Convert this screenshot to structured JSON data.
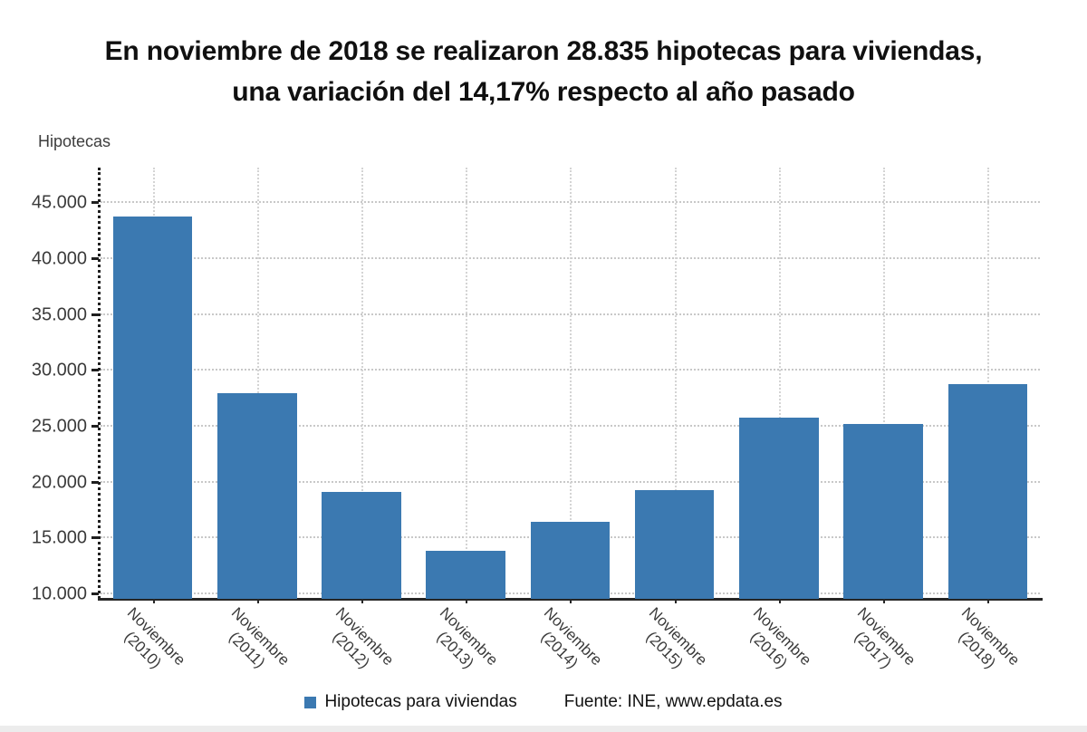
{
  "title": {
    "line1": "En noviembre de 2018 se realizaron 28.835 hipotecas para viviendas,",
    "line2": "una variación del 14,17% respecto al año pasado"
  },
  "legend": {
    "series_label": "Hipotecas para viviendas",
    "source": "Fuente: INE, www.epdata.es"
  },
  "colors": {
    "bar": "#3b79b1",
    "grid_horizontal": "#c8c8c8",
    "grid_vertical": "#d4d4d4",
    "axis": "#262626",
    "tick_text": "#3a3a3a",
    "title_text": "#101010",
    "bottom_strip": "#ececec"
  },
  "chart_data": {
    "type": "bar",
    "title": "En noviembre de 2018 se realizaron 28.835 hipotecas para viviendas, una variación del 14,17% respecto al año pasado",
    "xlabel": "",
    "ylabel": "Hipotecas",
    "categories": [
      "Noviembre (2010)",
      "Noviembre (2011)",
      "Noviembre (2012)",
      "Noviembre (2013)",
      "Noviembre (2014)",
      "Noviembre (2015)",
      "Noviembre (2016)",
      "Noviembre (2017)",
      "Noviembre (2018)"
    ],
    "series": [
      {
        "name": "Hipotecas para viviendas",
        "color": "#3b79b1",
        "values": [
          43800,
          28000,
          19200,
          13900,
          16500,
          19300,
          25800,
          25250,
          28835
        ]
      }
    ],
    "ylim": [
      9600,
      48200
    ],
    "yticks": [
      {
        "value": 10000,
        "label": "10.000"
      },
      {
        "value": 15000,
        "label": "15.000"
      },
      {
        "value": 20000,
        "label": "20.000"
      },
      {
        "value": 25000,
        "label": "25.000"
      },
      {
        "value": 30000,
        "label": "30.000"
      },
      {
        "value": 35000,
        "label": "35.000"
      },
      {
        "value": 40000,
        "label": "40.000"
      },
      {
        "value": 45000,
        "label": "45.000"
      }
    ],
    "grid": {
      "horizontal": true,
      "vertical": true,
      "style": "dotted"
    },
    "legend_position": "bottom-center",
    "source_note": "Fuente: INE, www.epdata.es"
  }
}
